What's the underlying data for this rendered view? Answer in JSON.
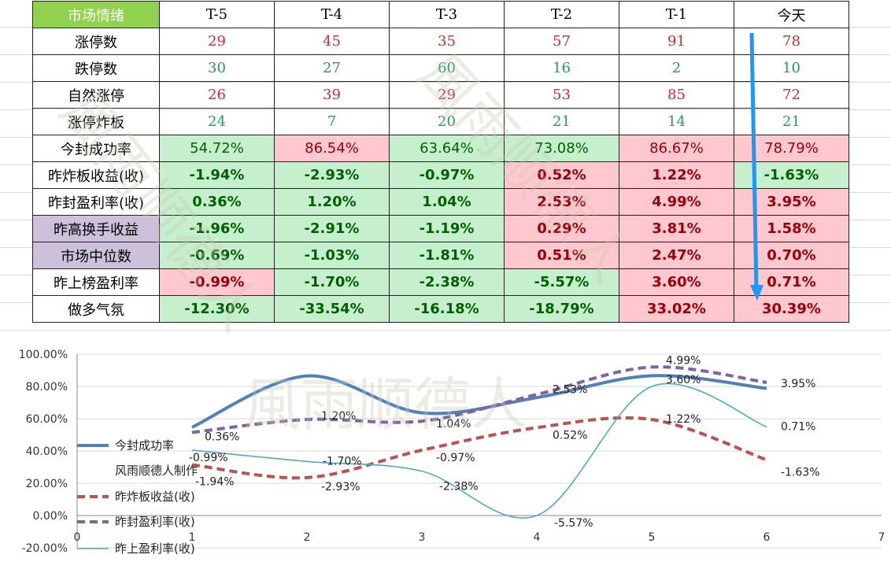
{
  "table": {
    "corner_label": "市场情绪",
    "columns": [
      "T-5",
      "T-4",
      "T-3",
      "T-2",
      "T-1",
      "今天"
    ],
    "rows": [
      {
        "label": "涨停数",
        "values": [
          "29",
          "45",
          "35",
          "57",
          "91",
          "78"
        ]
      },
      {
        "label": "跌停数",
        "values": [
          "30",
          "27",
          "60",
          "16",
          "2",
          "10"
        ]
      },
      {
        "label": "自然涨停",
        "values": [
          "26",
          "39",
          "29",
          "53",
          "85",
          "72"
        ]
      },
      {
        "label": "涨停炸板",
        "values": [
          "24",
          "7",
          "20",
          "21",
          "14",
          "21"
        ]
      },
      {
        "label": "今封成功率",
        "values": [
          "54.72%",
          "86.54%",
          "63.64%",
          "73.08%",
          "86.67%",
          "78.79%"
        ]
      },
      {
        "label": "昨炸板收益(收)",
        "values": [
          "-1.94%",
          "-2.93%",
          "-0.97%",
          "0.52%",
          "1.22%",
          "-1.63%"
        ]
      },
      {
        "label": "昨封盈利率(收)",
        "values": [
          "0.36%",
          "1.20%",
          "1.04%",
          "2.53%",
          "4.99%",
          "3.95%"
        ]
      },
      {
        "label": "昨高换手收益",
        "values": [
          "-1.96%",
          "-2.91%",
          "-1.19%",
          "0.29%",
          "3.81%",
          "1.58%"
        ]
      },
      {
        "label": "市场中位数",
        "values": [
          "-0.69%",
          "-1.03%",
          "-1.81%",
          "0.51%",
          "2.47%",
          "0.70%"
        ]
      },
      {
        "label": "昨上榜盈利率",
        "values": [
          "-0.99%",
          "-1.70%",
          "-2.38%",
          "-5.57%",
          "3.60%",
          "0.71%"
        ]
      },
      {
        "label": "做多气氛",
        "values": [
          "-12.30%",
          "-33.54%",
          "-16.18%",
          "-18.79%",
          "33.02%",
          "30.39%"
        ]
      }
    ]
  },
  "watermark_text": "風雨顺德人",
  "colors": {
    "series1": "#4f81bd",
    "series2": "#c0504d",
    "series3": "#8064a2",
    "series4": "#4bacc6",
    "pink_fill": "#ffc7ce",
    "green_fill": "#c6efce",
    "arrow": "#2196f3"
  },
  "chart_data": {
    "type": "line",
    "x": [
      1,
      2,
      3,
      4,
      5,
      6
    ],
    "xlim": [
      0,
      7
    ],
    "ylim": [
      -20,
      100
    ],
    "yticks": [
      "100.00%",
      "80.00%",
      "60.00%",
      "40.00%",
      "20.00%",
      "0.00%",
      "-20.00%"
    ],
    "xticks": [
      "0",
      "1",
      "2",
      "3",
      "4",
      "5",
      "6",
      "7"
    ],
    "grid": true,
    "legend_position": "left",
    "legend_note": "风雨顺德人制作",
    "series": [
      {
        "name": "今封成功率",
        "values": [
          54.72,
          86.54,
          63.64,
          73.08,
          86.67,
          78.79
        ],
        "labels": []
      },
      {
        "name": "昨炸板收益(收)",
        "values": [
          31.5,
          23.5,
          40.5,
          54.5,
          59.5,
          34.5
        ],
        "labels": [
          "-1.94%",
          "-2.93%",
          "-0.97%",
          "0.52%",
          "1.22%",
          "-1.63%"
        ]
      },
      {
        "name": "昨封盈利率(收)",
        "values": [
          51.5,
          59.5,
          58.5,
          75.0,
          92.0,
          82.5
        ],
        "labels": [
          "0.36%",
          "1.20%",
          "1.04%",
          "2.53%",
          "4.99%",
          "3.95%"
        ]
      },
      {
        "name": "昨上盈利率(收)",
        "values": [
          40.5,
          33.5,
          27.5,
          0.0,
          80.0,
          55.0
        ],
        "labels": [
          "-0.99%",
          "-1.70%",
          "-2.38%",
          "-5.57%",
          "3.60%",
          "0.71%"
        ]
      }
    ]
  }
}
